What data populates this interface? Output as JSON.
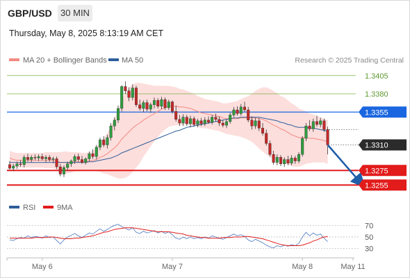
{
  "header": {
    "symbol": "GBP/USD",
    "timeframe": "30 MIN",
    "timestamp": "Thursday, May 8, 2025 8:13:19 AM CET"
  },
  "chart_data": {
    "type": "candlestick",
    "legend": [
      {
        "label": "MA 20 + Bollinger Bands",
        "color": "#f28b82"
      },
      {
        "label": "MA 50",
        "color": "#2f5d9a"
      }
    ],
    "source": "Research © 2025 Trading Central",
    "price_axis": {
      "min": 1.324,
      "max": 1.342
    },
    "levels": [
      {
        "label": "1.3405",
        "value": 1.3405,
        "kind": "target",
        "color": "#7cb342"
      },
      {
        "label": "1.3380",
        "value": 1.338,
        "kind": "target",
        "color": "#7cb342"
      },
      {
        "label": "1.3355",
        "value": 1.3355,
        "kind": "pivot",
        "color": "#1a66e0"
      },
      {
        "label": "1.3310",
        "value": 1.331,
        "kind": "last",
        "color": "#222222"
      },
      {
        "label": "1.3275",
        "value": 1.3275,
        "kind": "support",
        "color": "#e21b1b"
      },
      {
        "label": "1.3255",
        "value": 1.3255,
        "kind": "support",
        "color": "#e21b1b"
      }
    ],
    "x_labels": [
      {
        "label": "May 6",
        "index": 9
      },
      {
        "label": "May 7",
        "index": 45
      },
      {
        "label": "May 8",
        "index": 81
      },
      {
        "label": "May 11",
        "index": 95
      }
    ],
    "candles": [
      [
        1.3283,
        1.3288,
        1.3276,
        1.3278
      ],
      [
        1.3278,
        1.3284,
        1.3274,
        1.3281
      ],
      [
        1.3281,
        1.3287,
        1.3277,
        1.3284
      ],
      [
        1.3284,
        1.3289,
        1.328,
        1.3283
      ],
      [
        1.3283,
        1.3296,
        1.3279,
        1.3293
      ],
      [
        1.3293,
        1.3298,
        1.3287,
        1.329
      ],
      [
        1.329,
        1.3296,
        1.3286,
        1.3293
      ],
      [
        1.3293,
        1.3297,
        1.3289,
        1.3292
      ],
      [
        1.3292,
        1.3297,
        1.3288,
        1.3294
      ],
      [
        1.3294,
        1.3298,
        1.3289,
        1.3291
      ],
      [
        1.3291,
        1.3296,
        1.3286,
        1.3293
      ],
      [
        1.3293,
        1.3296,
        1.3287,
        1.329
      ],
      [
        1.329,
        1.3294,
        1.3285,
        1.3291
      ],
      [
        1.3291,
        1.3294,
        1.3277,
        1.328
      ],
      [
        1.328,
        1.3284,
        1.3267,
        1.327
      ],
      [
        1.327,
        1.3282,
        1.3266,
        1.3279
      ],
      [
        1.3279,
        1.3287,
        1.3275,
        1.3284
      ],
      [
        1.3284,
        1.329,
        1.328,
        1.3288
      ],
      [
        1.3288,
        1.3297,
        1.3284,
        1.3294
      ],
      [
        1.3294,
        1.3298,
        1.3287,
        1.329
      ],
      [
        1.329,
        1.3295,
        1.3284,
        1.3286
      ],
      [
        1.3286,
        1.3293,
        1.3283,
        1.3291
      ],
      [
        1.3291,
        1.3301,
        1.3288,
        1.3298
      ],
      [
        1.3298,
        1.3304,
        1.3291,
        1.3294
      ],
      [
        1.3294,
        1.331,
        1.329,
        1.3307
      ],
      [
        1.3307,
        1.332,
        1.3303,
        1.3317
      ],
      [
        1.3317,
        1.3322,
        1.3307,
        1.331
      ],
      [
        1.331,
        1.3324,
        1.3305,
        1.332
      ],
      [
        1.332,
        1.334,
        1.3316,
        1.3336
      ],
      [
        1.3336,
        1.3348,
        1.333,
        1.3344
      ],
      [
        1.3344,
        1.3364,
        1.334,
        1.336
      ],
      [
        1.336,
        1.3392,
        1.3356,
        1.339
      ],
      [
        1.339,
        1.3397,
        1.338,
        1.3384
      ],
      [
        1.3384,
        1.3389,
        1.337,
        1.3375
      ],
      [
        1.3375,
        1.3393,
        1.3371,
        1.3388
      ],
      [
        1.3388,
        1.3391,
        1.3362,
        1.3365
      ],
      [
        1.3365,
        1.3372,
        1.3357,
        1.336
      ],
      [
        1.336,
        1.3371,
        1.3355,
        1.3368
      ],
      [
        1.3368,
        1.3372,
        1.3356,
        1.3359
      ],
      [
        1.3359,
        1.3368,
        1.3354,
        1.3365
      ],
      [
        1.3365,
        1.3375,
        1.336,
        1.3371
      ],
      [
        1.3371,
        1.3374,
        1.336,
        1.3363
      ],
      [
        1.3363,
        1.3376,
        1.3359,
        1.3372
      ],
      [
        1.3372,
        1.3375,
        1.3358,
        1.3361
      ],
      [
        1.3361,
        1.3372,
        1.3358,
        1.3369
      ],
      [
        1.3369,
        1.3371,
        1.3353,
        1.3356
      ],
      [
        1.3356,
        1.3364,
        1.3342,
        1.3345
      ],
      [
        1.3345,
        1.3351,
        1.3336,
        1.334
      ],
      [
        1.334,
        1.3352,
        1.3336,
        1.3348
      ],
      [
        1.3348,
        1.3351,
        1.3336,
        1.3339
      ],
      [
        1.3339,
        1.335,
        1.3334,
        1.3346
      ],
      [
        1.3346,
        1.3349,
        1.3335,
        1.3338
      ],
      [
        1.3338,
        1.3346,
        1.3334,
        1.3343
      ],
      [
        1.3343,
        1.3347,
        1.3336,
        1.3339
      ],
      [
        1.3339,
        1.3348,
        1.3336,
        1.3344
      ],
      [
        1.3344,
        1.3349,
        1.3339,
        1.3341
      ],
      [
        1.3341,
        1.3351,
        1.3338,
        1.3348
      ],
      [
        1.3348,
        1.3353,
        1.3342,
        1.3345
      ],
      [
        1.3345,
        1.3349,
        1.3336,
        1.334
      ],
      [
        1.334,
        1.3344,
        1.3334,
        1.3337
      ],
      [
        1.3337,
        1.3345,
        1.3333,
        1.3342
      ],
      [
        1.3342,
        1.3354,
        1.3339,
        1.3351
      ],
      [
        1.3351,
        1.3362,
        1.3348,
        1.3358
      ],
      [
        1.3358,
        1.3363,
        1.335,
        1.3353
      ],
      [
        1.3353,
        1.3366,
        1.335,
        1.3362
      ],
      [
        1.3362,
        1.3369,
        1.3355,
        1.3358
      ],
      [
        1.3358,
        1.3362,
        1.3341,
        1.3344
      ],
      [
        1.3344,
        1.3349,
        1.3331,
        1.3336
      ],
      [
        1.3336,
        1.3347,
        1.3332,
        1.3343
      ],
      [
        1.3343,
        1.3347,
        1.3329,
        1.3333
      ],
      [
        1.3333,
        1.334,
        1.3323,
        1.3326
      ],
      [
        1.3326,
        1.3331,
        1.3309,
        1.3312
      ],
      [
        1.3312,
        1.3316,
        1.3294,
        1.3297
      ],
      [
        1.3297,
        1.3302,
        1.3283,
        1.3286
      ],
      [
        1.3286,
        1.3297,
        1.3282,
        1.3293
      ],
      [
        1.3293,
        1.3296,
        1.3281,
        1.3284
      ],
      [
        1.3284,
        1.3293,
        1.328,
        1.329
      ],
      [
        1.329,
        1.3295,
        1.3282,
        1.3285
      ],
      [
        1.3285,
        1.3296,
        1.3282,
        1.3292
      ],
      [
        1.3292,
        1.3295,
        1.3284,
        1.3288
      ],
      [
        1.3288,
        1.33,
        1.3285,
        1.3297
      ],
      [
        1.3297,
        1.3322,
        1.3294,
        1.3319
      ],
      [
        1.3319,
        1.334,
        1.3315,
        1.3336
      ],
      [
        1.3336,
        1.3344,
        1.3329,
        1.3332
      ],
      [
        1.3332,
        1.3346,
        1.3328,
        1.3342
      ],
      [
        1.3342,
        1.335,
        1.3335,
        1.3338
      ],
      [
        1.3338,
        1.3347,
        1.3334,
        1.3343
      ],
      [
        1.3343,
        1.3346,
        1.3328,
        1.3331
      ],
      [
        1.3331,
        1.3335,
        1.3297,
        1.331
      ]
    ],
    "ma20": [
      1.3292,
      1.329,
      1.3289,
      1.3289,
      1.3289,
      1.3289,
      1.3289,
      1.3289,
      1.3289,
      1.3289,
      1.3289,
      1.3289,
      1.3289,
      1.3288,
      1.3286,
      1.3286,
      1.3286,
      1.3286,
      1.3287,
      1.3287,
      1.3287,
      1.3287,
      1.3288,
      1.3289,
      1.329,
      1.3293,
      1.3295,
      1.3298,
      1.3302,
      1.3306,
      1.3311,
      1.3318,
      1.3323,
      1.3328,
      1.3333,
      1.3337,
      1.334,
      1.3344,
      1.3347,
      1.335,
      1.3353,
      1.3356,
      1.3359,
      1.3361,
      1.3363,
      1.3363,
      1.3363,
      1.3362,
      1.3362,
      1.3361,
      1.336,
      1.3358,
      1.3356,
      1.3354,
      1.3353,
      1.3352,
      1.3351,
      1.335,
      1.3349,
      1.3347,
      1.3346,
      1.3346,
      1.3346,
      1.3346,
      1.3347,
      1.3347,
      1.3347,
      1.3347,
      1.3347,
      1.3346,
      1.3345,
      1.3343,
      1.334,
      1.3337,
      1.3335,
      1.3332,
      1.333,
      1.3327,
      1.3324,
      1.3322,
      1.332,
      1.332,
      1.332,
      1.3319,
      1.3319,
      1.3318,
      1.3317,
      1.3316,
      1.3314
    ],
    "ma50": [
      1.3286,
      1.3286,
      1.3286,
      1.3286,
      1.3286,
      1.3286,
      1.3286,
      1.3286,
      1.3286,
      1.3286,
      1.3286,
      1.3286,
      1.3286,
      1.3286,
      1.3286,
      1.3286,
      1.3286,
      1.3286,
      1.3286,
      1.3286,
      1.3286,
      1.3286,
      1.3287,
      1.3287,
      1.3288,
      1.3289,
      1.329,
      1.3291,
      1.3292,
      1.3294,
      1.3296,
      1.3299,
      1.3301,
      1.3303,
      1.3305,
      1.3307,
      1.3309,
      1.3311,
      1.3313,
      1.3315,
      1.3317,
      1.3319,
      1.3321,
      1.3323,
      1.3325,
      1.3327,
      1.3329,
      1.333,
      1.3332,
      1.3334,
      1.3335,
      1.3336,
      1.3337,
      1.3338,
      1.3339,
      1.334,
      1.3341,
      1.3342,
      1.3343,
      1.3344,
      1.3345,
      1.3346,
      1.3347,
      1.3347,
      1.3348,
      1.3348,
      1.3348,
      1.3348,
      1.3348,
      1.3348,
      1.3347,
      1.3346,
      1.3345,
      1.3344,
      1.3343,
      1.3341,
      1.334,
      1.3338,
      1.3337,
      1.3335,
      1.3334,
      1.3334,
      1.3334,
      1.3333,
      1.3333,
      1.3332,
      1.3331,
      1.333,
      1.3329
    ],
    "bb_width": [
      0.001,
      0.001,
      0.001,
      0.001,
      0.001,
      0.001,
      0.001,
      0.001,
      0.001,
      0.001,
      0.0011,
      0.0011,
      0.0011,
      0.0012,
      0.0014,
      0.0015,
      0.0015,
      0.0014,
      0.0013,
      0.0013,
      0.0012,
      0.0012,
      0.0012,
      0.0013,
      0.0016,
      0.002,
      0.0024,
      0.0028,
      0.0034,
      0.004,
      0.0047,
      0.0054,
      0.0058,
      0.006,
      0.006,
      0.0058,
      0.0055,
      0.005,
      0.0046,
      0.0042,
      0.0038,
      0.0035,
      0.0032,
      0.003,
      0.0028,
      0.0027,
      0.0026,
      0.0025,
      0.0024,
      0.0023,
      0.0022,
      0.0022,
      0.0021,
      0.0021,
      0.002,
      0.002,
      0.002,
      0.002,
      0.002,
      0.002,
      0.0021,
      0.0022,
      0.0023,
      0.0024,
      0.0026,
      0.0028,
      0.003,
      0.0033,
      0.0037,
      0.0041,
      0.0044,
      0.0046,
      0.0047,
      0.0047,
      0.0046,
      0.0045,
      0.0045,
      0.0044,
      0.0043,
      0.0042,
      0.004,
      0.0038,
      0.0036,
      0.0034,
      0.0033,
      0.0032,
      0.0031,
      0.003,
      0.003
    ],
    "projection": {
      "from_index": 88,
      "from_value": 1.331,
      "to_index": 97,
      "to_value": 1.3255
    },
    "rsi_panel": {
      "legend": [
        {
          "label": "RSI",
          "color": "#2f5d9a"
        },
        {
          "label": "9MA",
          "color": "#e21b1b"
        }
      ],
      "ticks": [
        70,
        50,
        30
      ],
      "range": [
        20,
        80
      ],
      "rsi": [
        45,
        44,
        47,
        49,
        48,
        52,
        49,
        51,
        50,
        48,
        52,
        49,
        50,
        44,
        38,
        45,
        50,
        53,
        56,
        52,
        49,
        53,
        57,
        55,
        60,
        64,
        60,
        63,
        67,
        70,
        72,
        68,
        65,
        62,
        66,
        58,
        56,
        60,
        57,
        59,
        61,
        57,
        60,
        56,
        59,
        54,
        48,
        46,
        50,
        47,
        50,
        47,
        49,
        47,
        50,
        48,
        52,
        50,
        48,
        46,
        49,
        52,
        55,
        52,
        54,
        51,
        45,
        42,
        46,
        43,
        40,
        36,
        33,
        31,
        35,
        33,
        36,
        34,
        37,
        35,
        39,
        50,
        58,
        52,
        57,
        53,
        55,
        48,
        42
      ],
      "rsi_ma": [
        48,
        48,
        48,
        48,
        48,
        48,
        48,
        49,
        49,
        49,
        49,
        50,
        50,
        49,
        48,
        47,
        47,
        47,
        48,
        48,
        49,
        50,
        51,
        52,
        54,
        56,
        58,
        59,
        61,
        63,
        64,
        65,
        66,
        66,
        66,
        65,
        64,
        63,
        62,
        61,
        60,
        59,
        59,
        59,
        59,
        58,
        57,
        56,
        55,
        53,
        52,
        51,
        50,
        49,
        49,
        48,
        48,
        48,
        48,
        49,
        49,
        49,
        50,
        50,
        50,
        51,
        51,
        50,
        49,
        48,
        47,
        45,
        43,
        41,
        39,
        37,
        36,
        35,
        35,
        35,
        35,
        36,
        38,
        40,
        43,
        45,
        48,
        50,
        51
      ]
    }
  }
}
